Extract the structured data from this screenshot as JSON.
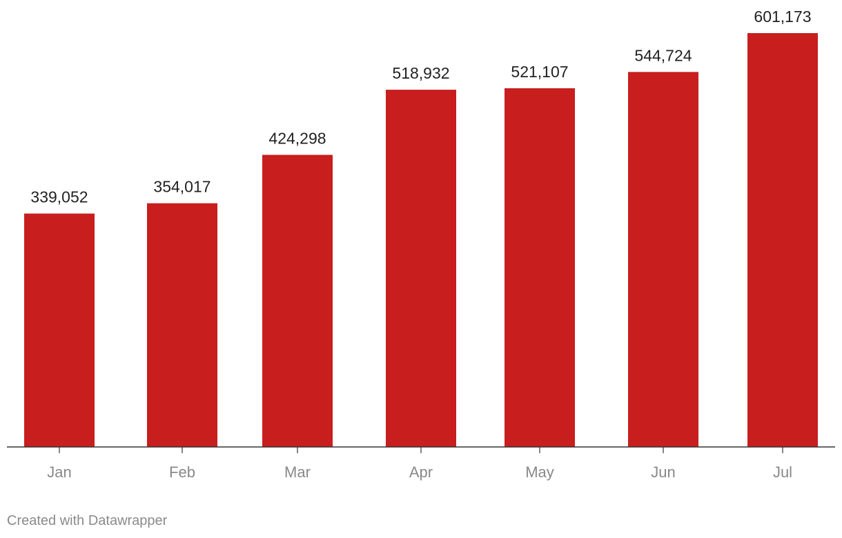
{
  "chart_data": {
    "type": "bar",
    "categories": [
      "Jan",
      "Feb",
      "Mar",
      "Apr",
      "May",
      "Jun",
      "Jul"
    ],
    "values": [
      339052,
      354017,
      424298,
      518932,
      521107,
      544724,
      601173
    ],
    "value_labels": [
      "339,052",
      "354,017",
      "424,298",
      "518,932",
      "521,107",
      "544,724",
      "601,173"
    ],
    "ylim": [
      0,
      601173
    ],
    "grid": false,
    "bar_color": "#c81e1e",
    "axis_color": "#333333"
  },
  "footer": {
    "credit": "Created with Datawrapper"
  }
}
